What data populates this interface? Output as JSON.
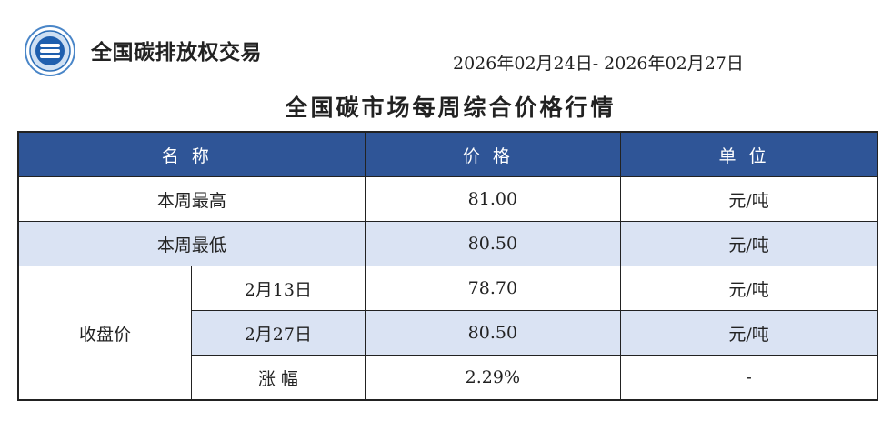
{
  "header": {
    "brand": "全国碳排放权交易",
    "date_range": "2026年02月24日- 2026年02月27日",
    "title": "全国碳市场每周综合价格行情"
  },
  "colors": {
    "header_bg": "#2f5597",
    "alt_row_bg": "#dae3f3"
  },
  "table": {
    "columns": [
      "名称",
      "价格",
      "单位"
    ],
    "rows": [
      {
        "name": "本周最高",
        "price": "81.00",
        "unit": "元/吨"
      },
      {
        "name": "本周最低",
        "price": "80.50",
        "unit": "元/吨"
      }
    ],
    "closing": {
      "label": "收盘价",
      "rows": [
        {
          "name": "2月13日",
          "price": "78.70",
          "unit": "元/吨"
        },
        {
          "name": "2月27日",
          "price": "80.50",
          "unit": "元/吨"
        },
        {
          "name": "涨 幅",
          "price": "2.29%",
          "unit": "-"
        }
      ]
    }
  }
}
